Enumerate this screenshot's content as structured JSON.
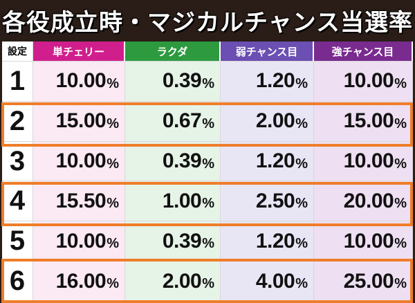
{
  "title": "各役成立時・マジカルチャンス当選率",
  "headers": {
    "setting": "設定",
    "columns": [
      "単チェリー",
      "ラクダ",
      "弱チャンス目",
      "強チャンス目"
    ]
  },
  "percent_sign": "%",
  "rows": [
    {
      "setting": "1",
      "values": [
        "10.00",
        "0.39",
        "1.20",
        "10.00"
      ],
      "highlighted": false
    },
    {
      "setting": "2",
      "values": [
        "15.00",
        "0.67",
        "2.00",
        "15.00"
      ],
      "highlighted": true
    },
    {
      "setting": "3",
      "values": [
        "10.00",
        "0.39",
        "1.20",
        "10.00"
      ],
      "highlighted": false
    },
    {
      "setting": "4",
      "values": [
        "15.50",
        "1.00",
        "2.50",
        "20.00"
      ],
      "highlighted": true
    },
    {
      "setting": "5",
      "values": [
        "10.00",
        "0.39",
        "1.20",
        "10.00"
      ],
      "highlighted": false
    },
    {
      "setting": "6",
      "values": [
        "16.00",
        "2.00",
        "4.00",
        "25.00"
      ],
      "highlighted": true
    }
  ],
  "colors": {
    "highlight_border": "#ef7d2a",
    "header_cherry": "#d01f8c",
    "header_rakuda": "#2e9a40",
    "header_weak": "#6b4fb2",
    "header_strong": "#7a2b8f"
  }
}
